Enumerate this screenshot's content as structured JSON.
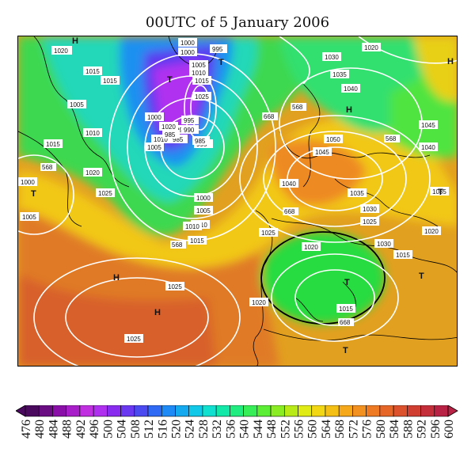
{
  "title": "00UTC of 5 January 2006",
  "map": {
    "geopotential_labels": [
      "568",
      "568",
      "568",
      "568",
      "668",
      "668",
      "668"
    ],
    "isobar_labels": [
      "1020",
      "1015",
      "1015",
      "1005",
      "1010",
      "1015",
      "1020",
      "1000",
      "1005",
      "1000",
      "995",
      "1000",
      "1005",
      "1010",
      "1015",
      "1025",
      "1030",
      "1035",
      "1040",
      "1035",
      "1030",
      "1025",
      "1020",
      "1015",
      "1025",
      "1020",
      "1025",
      "1010",
      "1045",
      "1040",
      "1020",
      "1035",
      "1040",
      "1045",
      "1050",
      "1030",
      "1025",
      "1020",
      "1015",
      "995",
      "990",
      "985",
      "985",
      "1000",
      "1005",
      "1010",
      "1020",
      "1025",
      "1015",
      "1010",
      "1005",
      "1000",
      "995",
      "990",
      "985"
    ],
    "centers": [
      "H",
      "H",
      "H",
      "H",
      "H",
      "T",
      "T",
      "T",
      "T",
      "T",
      "T",
      "T"
    ],
    "land_color": "#000000",
    "isobar_color": "#ffffff"
  },
  "colorbar": {
    "ticks": [
      "476",
      "480",
      "484",
      "488",
      "492",
      "496",
      "500",
      "504",
      "508",
      "512",
      "516",
      "520",
      "524",
      "528",
      "532",
      "536",
      "540",
      "544",
      "548",
      "552",
      "556",
      "560",
      "564",
      "568",
      "572",
      "576",
      "580",
      "584",
      "588",
      "592",
      "596",
      "600"
    ],
    "colors": [
      "#4a0a5e",
      "#6a0d83",
      "#8a0fa8",
      "#a81ec8",
      "#c02fe0",
      "#b030f0",
      "#8a2cf0",
      "#6a38f0",
      "#4a4af0",
      "#2f6af5",
      "#1e8af5",
      "#15aaf0",
      "#12c8e8",
      "#10e0d0",
      "#14e8a8",
      "#20ec80",
      "#38ee58",
      "#5cee34",
      "#8aec22",
      "#b8ea18",
      "#e0ea14",
      "#f2d814",
      "#f5c016",
      "#f5a81a",
      "#f29020",
      "#ee7a24",
      "#e66628",
      "#dc522c",
      "#d03e32",
      "#c42e3a",
      "#b82244"
    ]
  }
}
